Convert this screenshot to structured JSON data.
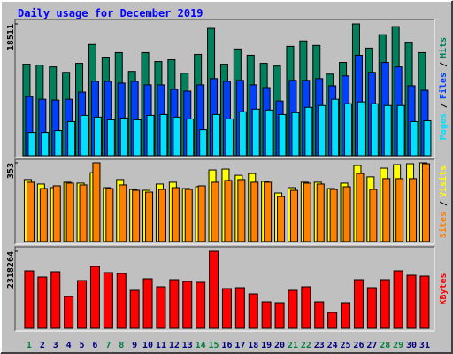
{
  "chart_data": [
    {
      "type": "bar",
      "title": "Daily usage for December 2019",
      "ylim": [
        0,
        18511
      ],
      "yticks": [
        18511
      ],
      "legend_separator": "/",
      "series": [
        {
          "name": "Hits",
          "color": "#00805c",
          "values": [
            12850,
            12720,
            12470,
            11710,
            12970,
            15620,
            13850,
            14480,
            11840,
            14480,
            13220,
            13480,
            11590,
            14230,
            17880,
            12850,
            14990,
            14110,
            12970,
            12590,
            15360,
            16120,
            15490,
            11460,
            13100,
            18511,
            15110,
            17000,
            18130,
            15870,
            14480
          ]
        },
        {
          "name": "Files",
          "color": "#0040ff",
          "values": [
            8310,
            7930,
            7810,
            7930,
            8940,
            10450,
            10450,
            10200,
            10450,
            9950,
            9950,
            9320,
            9070,
            9950,
            10830,
            10450,
            10580,
            9950,
            9570,
            7680,
            10580,
            10580,
            10830,
            9820,
            11210,
            14110,
            11710,
            13100,
            12470,
            9820,
            9190
          ]
        },
        {
          "name": "Pages",
          "color": "#00e0ff",
          "values": [
            3280,
            3280,
            3530,
            4790,
            5670,
            5420,
            5040,
            5290,
            5040,
            5670,
            5790,
            5420,
            5160,
            3650,
            5790,
            5160,
            6170,
            6550,
            6420,
            5790,
            6050,
            6800,
            7050,
            7930,
            7300,
            7560,
            7300,
            7050,
            7050,
            4790,
            4910
          ]
        }
      ]
    },
    {
      "type": "bar",
      "ylim": [
        0,
        353
      ],
      "yticks": [
        353
      ],
      "legend_separator": "/",
      "series": [
        {
          "name": "Visits",
          "color": "#ffff00",
          "values": [
            278,
            258,
            242,
            266,
            262,
            309,
            242,
            278,
            234,
            230,
            258,
            266,
            238,
            246,
            321,
            325,
            297,
            305,
            270,
            218,
            242,
            266,
            266,
            238,
            262,
            341,
            290,
            329,
            345,
            349,
            353
          ]
        },
        {
          "name": "Sites",
          "color": "#ff8000",
          "values": [
            266,
            238,
            250,
            262,
            254,
            353,
            238,
            254,
            230,
            222,
            234,
            242,
            234,
            250,
            266,
            274,
            278,
            266,
            266,
            202,
            230,
            262,
            258,
            234,
            246,
            305,
            234,
            282,
            282,
            282,
            349
          ]
        }
      ]
    },
    {
      "type": "bar",
      "ylim": [
        0,
        2318264
      ],
      "yticks": [
        2318264
      ],
      "categories": [
        "1",
        "2",
        "3",
        "4",
        "5",
        "6",
        "7",
        "8",
        "9",
        "10",
        "11",
        "12",
        "13",
        "14",
        "15",
        "16",
        "17",
        "18",
        "19",
        "20",
        "21",
        "22",
        "23",
        "24",
        "25",
        "26",
        "27",
        "28",
        "29",
        "30",
        "31"
      ],
      "category_colors": [
        "#008040",
        "#000080",
        "#000080",
        "#000080",
        "#000080",
        "#000080",
        "#008040",
        "#008040",
        "#000080",
        "#000080",
        "#000080",
        "#000080",
        "#000080",
        "#008040",
        "#008040",
        "#000080",
        "#000080",
        "#000080",
        "#000080",
        "#000080",
        "#008040",
        "#008040",
        "#000080",
        "#000080",
        "#000080",
        "#000080",
        "#000080",
        "#008040",
        "#008040",
        "#000080",
        "#000080"
      ],
      "series": [
        {
          "name": "KBytes",
          "color": "#ff0000",
          "values": [
            1732000,
            1545500,
            1705400,
            959300,
            1438900,
            1865300,
            1678800,
            1652100,
            1145800,
            1492200,
            1252400,
            1465600,
            1412300,
            1385600,
            2318264,
            1199100,
            1225700,
            1039200,
            799400,
            772800,
            1145800,
            1252400,
            799400,
            479600,
            772800,
            1465600,
            1225700,
            1465600,
            1732000,
            1598800,
            1572200
          ]
        }
      ]
    }
  ]
}
